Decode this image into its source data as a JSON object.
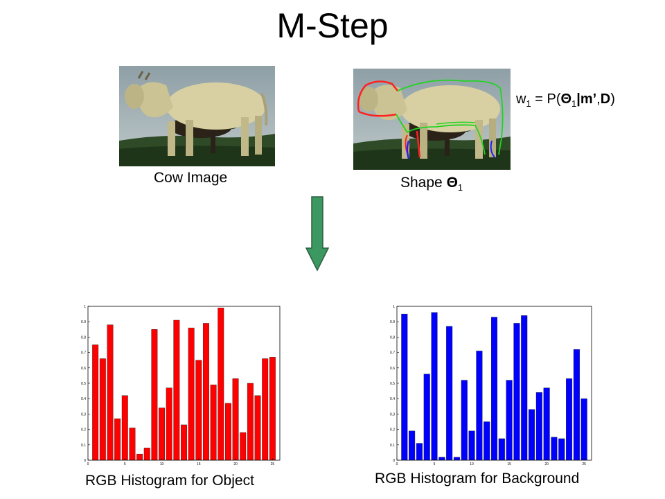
{
  "title": "M-Step",
  "captions": {
    "cow_image": "Cow Image",
    "shape_prefix": "Shape ",
    "shape_theta": "Θ",
    "shape_sub": "1",
    "hist_object": "RGB Histogram for Object",
    "hist_background": "RGB Histogram for Background"
  },
  "formula": {
    "w": "w",
    "w_sub": "1",
    "eq": " = P(",
    "theta": "Θ",
    "theta_sub": "1",
    "bar": "|",
    "m": "m’",
    "comma": ",",
    "d": "D",
    "close": ")"
  },
  "arrow_color": "#3a9860",
  "chart_data": [
    {
      "type": "bar",
      "name": "object",
      "color": "#ff0000",
      "xlim": [
        0,
        26
      ],
      "ylim": [
        0,
        1
      ],
      "x_ticks": [
        0,
        5,
        10,
        15,
        20,
        25
      ],
      "y_ticks": [
        0,
        0.1,
        0.2,
        0.3,
        0.4,
        0.5,
        0.6,
        0.7,
        0.8,
        0.9,
        1
      ],
      "x_tick_labels": [
        "0",
        "5",
        "10",
        "15",
        "20",
        "25"
      ],
      "y_tick_labels": [
        "0",
        "0.1",
        "0.2",
        "0.3",
        "0.4",
        "0.5",
        "0.6",
        "0.7",
        "0.8",
        "0.9",
        "1"
      ],
      "categories": [
        1,
        2,
        3,
        4,
        5,
        6,
        7,
        8,
        9,
        10,
        11,
        12,
        13,
        14,
        15,
        16,
        17,
        18,
        19,
        20,
        21,
        22,
        23,
        24,
        25
      ],
      "values": [
        0.75,
        0.66,
        0.88,
        0.27,
        0.42,
        0.21,
        0.04,
        0.08,
        0.85,
        0.34,
        0.47,
        0.91,
        0.23,
        0.86,
        0.65,
        0.89,
        0.49,
        0.99,
        0.37,
        0.53,
        0.18,
        0.5,
        0.42,
        0.66,
        0.67
      ]
    },
    {
      "type": "bar",
      "name": "background",
      "color": "#0000ff",
      "xlim": [
        0,
        26
      ],
      "ylim": [
        0,
        1
      ],
      "x_ticks": [
        0,
        5,
        10,
        15,
        20,
        25
      ],
      "y_ticks": [
        0,
        0.1,
        0.2,
        0.3,
        0.4,
        0.5,
        0.6,
        0.7,
        0.8,
        0.9,
        1
      ],
      "x_tick_labels": [
        "0",
        "5",
        "10",
        "15",
        "20",
        "25"
      ],
      "y_tick_labels": [
        "0",
        "0.1",
        "0.2",
        "0.3",
        "0.4",
        "0.5",
        "0.6",
        "0.7",
        "0.8",
        "0.9",
        "1"
      ],
      "categories": [
        1,
        2,
        3,
        4,
        5,
        6,
        7,
        8,
        9,
        10,
        11,
        12,
        13,
        14,
        15,
        16,
        17,
        18,
        19,
        20,
        21,
        22,
        23,
        24,
        25
      ],
      "values": [
        0.95,
        0.19,
        0.11,
        0.56,
        0.96,
        0.02,
        0.87,
        0.02,
        0.52,
        0.19,
        0.71,
        0.25,
        0.93,
        0.14,
        0.52,
        0.89,
        0.94,
        0.33,
        0.44,
        0.47,
        0.15,
        0.14,
        0.53,
        0.72,
        0.4
      ]
    }
  ]
}
